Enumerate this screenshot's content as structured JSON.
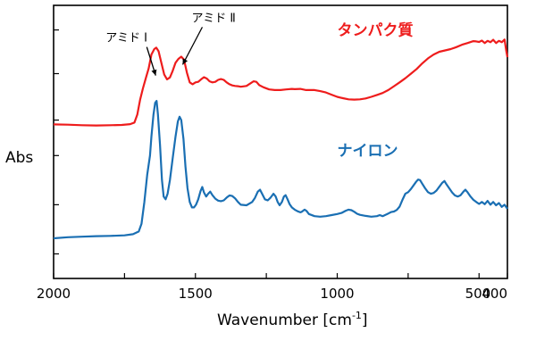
{
  "chart_data": {
    "type": "line",
    "xlabel": "Wavenumber [cm",
    "xlabel_sup": "-1",
    "xlabel_close": "]",
    "ylabel": "Abs",
    "xlim": [
      2000,
      400
    ],
    "ylim": [
      0,
      1.0
    ],
    "x_ticks": [
      {
        "value": 2000,
        "label": "2000"
      },
      {
        "value": 1750,
        "label": ""
      },
      {
        "value": 1500,
        "label": "1500"
      },
      {
        "value": 1250,
        "label": ""
      },
      {
        "value": 1000,
        "label": "1000"
      },
      {
        "value": 750,
        "label": ""
      },
      {
        "value": 500,
        "label": "500"
      },
      {
        "value": 400,
        "label": "400"
      }
    ],
    "y_ticks": [
      0.09,
      0.27,
      0.45,
      0.58,
      0.75,
      0.91
    ],
    "grid": false,
    "legend": "inline labels",
    "series": [
      {
        "name": "タンパク質",
        "color": "#ee1c1c",
        "label_anchor": {
          "x": 1000,
          "y": 0.89
        },
        "points": [
          [
            2000,
            0.564
          ],
          [
            1950,
            0.563
          ],
          [
            1900,
            0.561
          ],
          [
            1850,
            0.56
          ],
          [
            1800,
            0.561
          ],
          [
            1760,
            0.562
          ],
          [
            1730,
            0.565
          ],
          [
            1715,
            0.571
          ],
          [
            1705,
            0.6
          ],
          [
            1695,
            0.654
          ],
          [
            1685,
            0.696
          ],
          [
            1675,
            0.733
          ],
          [
            1665,
            0.769
          ],
          [
            1655,
            0.82
          ],
          [
            1645,
            0.84
          ],
          [
            1638,
            0.845
          ],
          [
            1630,
            0.832
          ],
          [
            1620,
            0.79
          ],
          [
            1610,
            0.747
          ],
          [
            1600,
            0.729
          ],
          [
            1590,
            0.736
          ],
          [
            1580,
            0.76
          ],
          [
            1570,
            0.79
          ],
          [
            1560,
            0.804
          ],
          [
            1550,
            0.812
          ],
          [
            1540,
            0.801
          ],
          [
            1530,
            0.754
          ],
          [
            1520,
            0.718
          ],
          [
            1510,
            0.711
          ],
          [
            1500,
            0.718
          ],
          [
            1490,
            0.72
          ],
          [
            1480,
            0.729
          ],
          [
            1470,
            0.737
          ],
          [
            1460,
            0.732
          ],
          [
            1450,
            0.722
          ],
          [
            1440,
            0.718
          ],
          [
            1430,
            0.72
          ],
          [
            1420,
            0.727
          ],
          [
            1410,
            0.73
          ],
          [
            1400,
            0.727
          ],
          [
            1390,
            0.718
          ],
          [
            1380,
            0.711
          ],
          [
            1370,
            0.707
          ],
          [
            1360,
            0.705
          ],
          [
            1350,
            0.704
          ],
          [
            1340,
            0.702
          ],
          [
            1320,
            0.705
          ],
          [
            1305,
            0.715
          ],
          [
            1295,
            0.722
          ],
          [
            1285,
            0.72
          ],
          [
            1275,
            0.708
          ],
          [
            1260,
            0.7
          ],
          [
            1240,
            0.692
          ],
          [
            1220,
            0.69
          ],
          [
            1200,
            0.69
          ],
          [
            1180,
            0.692
          ],
          [
            1160,
            0.694
          ],
          [
            1150,
            0.693
          ],
          [
            1130,
            0.694
          ],
          [
            1110,
            0.69
          ],
          [
            1100,
            0.69
          ],
          [
            1080,
            0.69
          ],
          [
            1060,
            0.686
          ],
          [
            1040,
            0.681
          ],
          [
            1020,
            0.673
          ],
          [
            1000,
            0.665
          ],
          [
            980,
            0.66
          ],
          [
            960,
            0.656
          ],
          [
            940,
            0.655
          ],
          [
            920,
            0.656
          ],
          [
            900,
            0.659
          ],
          [
            880,
            0.665
          ],
          [
            860,
            0.672
          ],
          [
            840,
            0.679
          ],
          [
            820,
            0.69
          ],
          [
            800,
            0.704
          ],
          [
            780,
            0.718
          ],
          [
            760,
            0.733
          ],
          [
            740,
            0.75
          ],
          [
            720,
            0.767
          ],
          [
            700,
            0.788
          ],
          [
            680,
            0.806
          ],
          [
            660,
            0.82
          ],
          [
            640,
            0.83
          ],
          [
            620,
            0.835
          ],
          [
            600,
            0.84
          ],
          [
            580,
            0.847
          ],
          [
            560,
            0.856
          ],
          [
            540,
            0.862
          ],
          [
            520,
            0.869
          ],
          [
            510,
            0.868
          ],
          [
            500,
            0.866
          ],
          [
            490,
            0.871
          ],
          [
            480,
            0.862
          ],
          [
            470,
            0.87
          ],
          [
            460,
            0.865
          ],
          [
            450,
            0.874
          ],
          [
            440,
            0.862
          ],
          [
            430,
            0.87
          ],
          [
            420,
            0.865
          ],
          [
            410,
            0.875
          ],
          [
            405,
            0.84
          ],
          [
            400,
            0.81
          ]
        ]
      },
      {
        "name": "ナイロン",
        "color": "#1a6fb3",
        "label_anchor": {
          "x": 1000,
          "y": 0.45
        },
        "points": [
          [
            2000,
            0.147
          ],
          [
            1950,
            0.151
          ],
          [
            1900,
            0.153
          ],
          [
            1850,
            0.155
          ],
          [
            1800,
            0.156
          ],
          [
            1750,
            0.158
          ],
          [
            1720,
            0.162
          ],
          [
            1700,
            0.172
          ],
          [
            1690,
            0.2
          ],
          [
            1680,
            0.28
          ],
          [
            1670,
            0.38
          ],
          [
            1660,
            0.45
          ],
          [
            1655,
            0.52
          ],
          [
            1648,
            0.6
          ],
          [
            1642,
            0.643
          ],
          [
            1637,
            0.65
          ],
          [
            1632,
            0.6
          ],
          [
            1625,
            0.49
          ],
          [
            1618,
            0.36
          ],
          [
            1612,
            0.3
          ],
          [
            1605,
            0.29
          ],
          [
            1598,
            0.31
          ],
          [
            1590,
            0.36
          ],
          [
            1580,
            0.44
          ],
          [
            1570,
            0.52
          ],
          [
            1562,
            0.575
          ],
          [
            1556,
            0.592
          ],
          [
            1550,
            0.58
          ],
          [
            1542,
            0.51
          ],
          [
            1535,
            0.41
          ],
          [
            1528,
            0.33
          ],
          [
            1520,
            0.28
          ],
          [
            1512,
            0.26
          ],
          [
            1505,
            0.26
          ],
          [
            1498,
            0.27
          ],
          [
            1490,
            0.29
          ],
          [
            1482,
            0.32
          ],
          [
            1476,
            0.335
          ],
          [
            1470,
            0.315
          ],
          [
            1462,
            0.3
          ],
          [
            1455,
            0.31
          ],
          [
            1448,
            0.318
          ],
          [
            1440,
            0.305
          ],
          [
            1430,
            0.292
          ],
          [
            1420,
            0.285
          ],
          [
            1410,
            0.283
          ],
          [
            1400,
            0.286
          ],
          [
            1390,
            0.296
          ],
          [
            1380,
            0.304
          ],
          [
            1370,
            0.302
          ],
          [
            1360,
            0.293
          ],
          [
            1350,
            0.28
          ],
          [
            1340,
            0.27
          ],
          [
            1320,
            0.268
          ],
          [
            1300,
            0.28
          ],
          [
            1290,
            0.295
          ],
          [
            1280,
            0.318
          ],
          [
            1272,
            0.325
          ],
          [
            1265,
            0.31
          ],
          [
            1255,
            0.29
          ],
          [
            1245,
            0.286
          ],
          [
            1235,
            0.296
          ],
          [
            1225,
            0.31
          ],
          [
            1217,
            0.3
          ],
          [
            1210,
            0.28
          ],
          [
            1203,
            0.268
          ],
          [
            1195,
            0.28
          ],
          [
            1188,
            0.3
          ],
          [
            1182,
            0.305
          ],
          [
            1175,
            0.29
          ],
          [
            1168,
            0.272
          ],
          [
            1160,
            0.26
          ],
          [
            1150,
            0.252
          ],
          [
            1140,
            0.246
          ],
          [
            1130,
            0.242
          ],
          [
            1125,
            0.244
          ],
          [
            1115,
            0.252
          ],
          [
            1108,
            0.247
          ],
          [
            1100,
            0.236
          ],
          [
            1080,
            0.228
          ],
          [
            1060,
            0.226
          ],
          [
            1040,
            0.228
          ],
          [
            1020,
            0.232
          ],
          [
            1000,
            0.236
          ],
          [
            985,
            0.24
          ],
          [
            970,
            0.248
          ],
          [
            960,
            0.252
          ],
          [
            950,
            0.25
          ],
          [
            940,
            0.244
          ],
          [
            930,
            0.237
          ],
          [
            920,
            0.233
          ],
          [
            900,
            0.229
          ],
          [
            880,
            0.226
          ],
          [
            860,
            0.228
          ],
          [
            850,
            0.232
          ],
          [
            840,
            0.228
          ],
          [
            830,
            0.233
          ],
          [
            820,
            0.238
          ],
          [
            810,
            0.243
          ],
          [
            800,
            0.245
          ],
          [
            790,
            0.251
          ],
          [
            780,
            0.263
          ],
          [
            770,
            0.288
          ],
          [
            760,
            0.31
          ],
          [
            750,
            0.316
          ],
          [
            740,
            0.328
          ],
          [
            730,
            0.342
          ],
          [
            722,
            0.354
          ],
          [
            715,
            0.362
          ],
          [
            708,
            0.36
          ],
          [
            700,
            0.346
          ],
          [
            690,
            0.33
          ],
          [
            680,
            0.316
          ],
          [
            670,
            0.31
          ],
          [
            660,
            0.313
          ],
          [
            650,
            0.322
          ],
          [
            640,
            0.336
          ],
          [
            630,
            0.35
          ],
          [
            622,
            0.357
          ],
          [
            615,
            0.345
          ],
          [
            605,
            0.33
          ],
          [
            595,
            0.315
          ],
          [
            585,
            0.304
          ],
          [
            575,
            0.3
          ],
          [
            565,
            0.305
          ],
          [
            555,
            0.318
          ],
          [
            548,
            0.325
          ],
          [
            540,
            0.315
          ],
          [
            530,
            0.3
          ],
          [
            520,
            0.288
          ],
          [
            510,
            0.28
          ],
          [
            500,
            0.273
          ],
          [
            490,
            0.28
          ],
          [
            480,
            0.272
          ],
          [
            470,
            0.284
          ],
          [
            460,
            0.27
          ],
          [
            450,
            0.28
          ],
          [
            440,
            0.268
          ],
          [
            430,
            0.276
          ],
          [
            420,
            0.262
          ],
          [
            410,
            0.27
          ],
          [
            400,
            0.255
          ]
        ]
      }
    ],
    "annotations": [
      {
        "text": "アミド I",
        "peak_x": 1640,
        "peak_y": 0.73
      },
      {
        "text": "アミド Ⅱ",
        "peak_x": 1545,
        "peak_y": 0.77
      }
    ]
  }
}
